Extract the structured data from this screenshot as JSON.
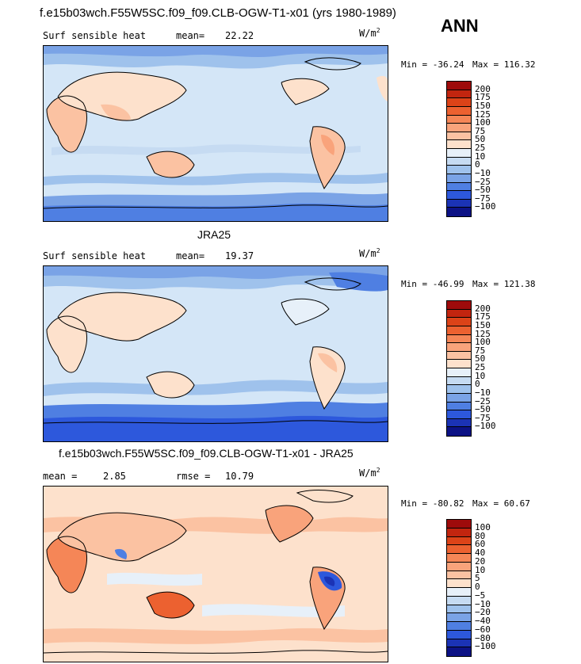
{
  "header": {
    "main_title": "f.e15b03wch.F55W5SC.f09_f09.CLB-OGW-T1-x01 (yrs 1980-1989)",
    "season": "ANN"
  },
  "colors": {
    "ocean_light": "#d4e6f7",
    "continent_outline": "#000000"
  },
  "panels": [
    {
      "title": "",
      "left_label": "Surf sensible heat",
      "stat_label": "mean=",
      "stat_value": "22.22",
      "units": "W/m",
      "units_sup": "2",
      "min_text": "Min = -36.24",
      "max_text": "Max = 116.32",
      "colorbar": {
        "ticks": [
          "200",
          "175",
          "150",
          "125",
          "100",
          "75",
          "50",
          "25",
          "10",
          "0",
          "−10",
          "−25",
          "−50",
          "−75",
          "−100"
        ],
        "colors": [
          "#9e0b0b",
          "#c2250f",
          "#dc4318",
          "#ec6130",
          "#f58657",
          "#f9a37b",
          "#fbc2a2",
          "#fde1cc",
          "#e7f0f9",
          "#c6dbf2",
          "#9fc2ec",
          "#7aa3e6",
          "#4f7fe2",
          "#2d58dc",
          "#1b33b5",
          "#0c1285"
        ]
      }
    },
    {
      "title": "JRA25",
      "left_label": "Surf sensible heat",
      "stat_label": "mean=",
      "stat_value": "19.37",
      "units": "W/m",
      "units_sup": "2",
      "min_text": "Min = -46.99",
      "max_text": "Max = 121.38",
      "colorbar": {
        "ticks": [
          "200",
          "175",
          "150",
          "125",
          "100",
          "75",
          "50",
          "25",
          "10",
          "0",
          "−10",
          "−25",
          "−50",
          "−75",
          "−100"
        ],
        "colors": [
          "#9e0b0b",
          "#c2250f",
          "#dc4318",
          "#ec6130",
          "#f58657",
          "#f9a37b",
          "#fbc2a2",
          "#fde1cc",
          "#e7f0f9",
          "#c6dbf2",
          "#9fc2ec",
          "#7aa3e6",
          "#4f7fe2",
          "#2d58dc",
          "#1b33b5",
          "#0c1285"
        ]
      }
    },
    {
      "title": "f.e15b03wch.F55W5SC.f09_f09.CLB-OGW-T1-x01 - JRA25",
      "left_label": "mean =",
      "stat_label": "rmse =",
      "left_value": "2.85",
      "stat_value": "10.79",
      "units": "W/m",
      "units_sup": "2",
      "min_text": "Min = -80.82",
      "max_text": "Max = 60.67",
      "colorbar": {
        "ticks": [
          "100",
          "80",
          "60",
          "40",
          "20",
          "10",
          "5",
          "0",
          "−5",
          "−10",
          "−20",
          "−40",
          "−60",
          "−80",
          "−100"
        ],
        "colors": [
          "#9e0b0b",
          "#c2250f",
          "#dc4318",
          "#ec6130",
          "#f58657",
          "#f9a37b",
          "#fbc2a2",
          "#fde1cc",
          "#e7f0f9",
          "#c6dbf2",
          "#9fc2ec",
          "#7aa3e6",
          "#4f7fe2",
          "#2d58dc",
          "#1b33b5",
          "#0c1285"
        ]
      }
    }
  ],
  "chart_data": [
    {
      "type": "heatmap",
      "title": "",
      "variable": "Surf sensible heat",
      "mean": 22.22,
      "units": "W/m2",
      "min": -36.24,
      "max": 116.32,
      "contour_levels": [
        -100,
        -75,
        -50,
        -25,
        -10,
        0,
        10,
        25,
        50,
        75,
        100,
        125,
        150,
        175,
        200
      ]
    },
    {
      "type": "heatmap",
      "title": "JRA25",
      "variable": "Surf sensible heat",
      "mean": 19.37,
      "units": "W/m2",
      "min": -46.99,
      "max": 121.38,
      "contour_levels": [
        -100,
        -75,
        -50,
        -25,
        -10,
        0,
        10,
        25,
        50,
        75,
        100,
        125,
        150,
        175,
        200
      ]
    },
    {
      "type": "heatmap",
      "title": "f.e15b03wch.F55W5SC.f09_f09.CLB-OGW-T1-x01 - JRA25",
      "mean": 2.85,
      "rmse": 10.79,
      "units": "W/m2",
      "min": -80.82,
      "max": 60.67,
      "contour_levels": [
        -100,
        -80,
        -60,
        -40,
        -20,
        -10,
        -5,
        0,
        5,
        10,
        20,
        40,
        60,
        80,
        100
      ]
    }
  ]
}
